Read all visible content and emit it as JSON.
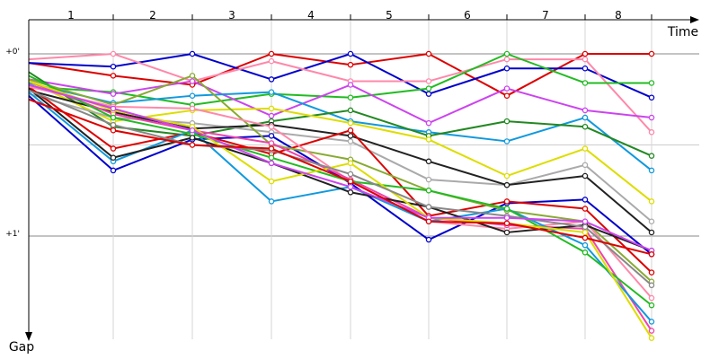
{
  "chart_data": {
    "type": "line",
    "title": "",
    "xlabel": "Time",
    "ylabel": "Gap",
    "x_tick_labels": [
      "1",
      "2",
      "3",
      "4",
      "5",
      "6",
      "7",
      "8"
    ],
    "y_tick_labels": [
      "+0'",
      "+1'"
    ],
    "y_axis_inverted": true,
    "ylim": [
      -0.1,
      1.5
    ],
    "grid": true,
    "legend": "none",
    "x": [
      0,
      1,
      2,
      3,
      4,
      5,
      6,
      7,
      8,
      9
    ],
    "series": [
      {
        "color": "#dd0000",
        "values": [
          0.05,
          0.12,
          0.17,
          0.0,
          0.06,
          0.0,
          0.23,
          0.0,
          0.0,
          null
        ]
      },
      {
        "color": "#0000cc",
        "values": [
          0.05,
          0.07,
          0.0,
          0.14,
          0.0,
          0.22,
          0.08,
          0.08,
          0.24,
          null
        ]
      },
      {
        "color": "#ff88aa",
        "values": [
          0.03,
          0.0,
          0.15,
          0.04,
          0.15,
          0.15,
          0.03,
          0.03,
          0.43,
          null
        ]
      },
      {
        "color": "#22bb22",
        "values": [
          0.18,
          0.21,
          0.28,
          0.22,
          0.24,
          0.19,
          0.0,
          0.16,
          0.16,
          null
        ]
      },
      {
        "color": "#cc44ee",
        "values": [
          0.14,
          0.22,
          0.15,
          0.34,
          0.17,
          0.38,
          0.19,
          0.31,
          0.35,
          null
        ]
      },
      {
        "color": "#1199dd",
        "values": [
          0.16,
          0.27,
          0.23,
          0.21,
          0.37,
          0.43,
          0.48,
          0.35,
          0.64,
          null
        ]
      },
      {
        "color": "#228822",
        "values": [
          0.1,
          0.4,
          0.45,
          0.37,
          0.31,
          0.45,
          0.37,
          0.4,
          0.56,
          null
        ]
      },
      {
        "color": "#dddd00",
        "values": [
          0.15,
          0.37,
          0.31,
          0.3,
          0.38,
          0.47,
          0.67,
          0.52,
          0.81,
          null
        ]
      },
      {
        "color": "#aaaaaa",
        "values": [
          0.22,
          0.35,
          0.38,
          0.43,
          0.48,
          0.69,
          0.72,
          0.61,
          0.92,
          null
        ]
      },
      {
        "color": "#222222",
        "values": [
          0.2,
          0.32,
          0.41,
          0.39,
          0.45,
          0.59,
          0.72,
          0.67,
          0.98,
          null
        ]
      },
      {
        "color": "#0000cc",
        "values": [
          0.23,
          0.64,
          0.47,
          0.45,
          0.71,
          1.02,
          0.82,
          0.8,
          1.1,
          null
        ]
      },
      {
        "color": "#dd0000",
        "values": [
          0.18,
          0.52,
          0.43,
          0.55,
          0.42,
          0.89,
          0.81,
          0.85,
          1.2,
          null
        ]
      },
      {
        "color": "#88aa33",
        "values": [
          0.14,
          0.28,
          0.12,
          0.5,
          0.58,
          0.75,
          0.86,
          0.92,
          1.25,
          null
        ]
      },
      {
        "color": "#ff88aa",
        "values": [
          0.18,
          0.29,
          0.3,
          0.4,
          0.7,
          0.92,
          0.96,
          0.92,
          1.34,
          null
        ]
      },
      {
        "color": "#ee44aa",
        "values": [
          0.15,
          0.33,
          0.42,
          0.49,
          0.69,
          0.9,
          0.94,
          0.96,
          1.52,
          null
        ]
      },
      {
        "color": "#1199dd",
        "values": [
          0.21,
          0.59,
          0.42,
          0.81,
          0.73,
          0.92,
          0.85,
          1.05,
          1.47,
          null
        ]
      },
      {
        "color": "#22bb22",
        "values": [
          0.12,
          0.35,
          0.44,
          0.57,
          0.7,
          0.75,
          0.85,
          1.09,
          1.38,
          null
        ]
      },
      {
        "color": "#222222",
        "values": [
          0.19,
          0.57,
          0.46,
          0.6,
          0.76,
          0.84,
          0.98,
          0.94,
          1.08,
          null
        ]
      },
      {
        "color": "#dddd00",
        "values": [
          0.15,
          0.31,
          0.4,
          0.7,
          0.6,
          0.9,
          0.93,
          0.98,
          1.56,
          null
        ]
      },
      {
        "color": "#888888",
        "values": [
          0.2,
          0.39,
          0.5,
          0.53,
          0.66,
          0.84,
          0.89,
          0.95,
          1.27,
          null
        ]
      },
      {
        "color": "#cc44ee",
        "values": [
          0.17,
          0.3,
          0.42,
          0.6,
          0.73,
          0.9,
          0.9,
          0.92,
          1.08,
          null
        ]
      },
      {
        "color": "#dd0000",
        "values": [
          0.25,
          0.42,
          0.5,
          0.52,
          0.7,
          0.92,
          0.93,
          1.01,
          1.1,
          null
        ]
      }
    ]
  }
}
